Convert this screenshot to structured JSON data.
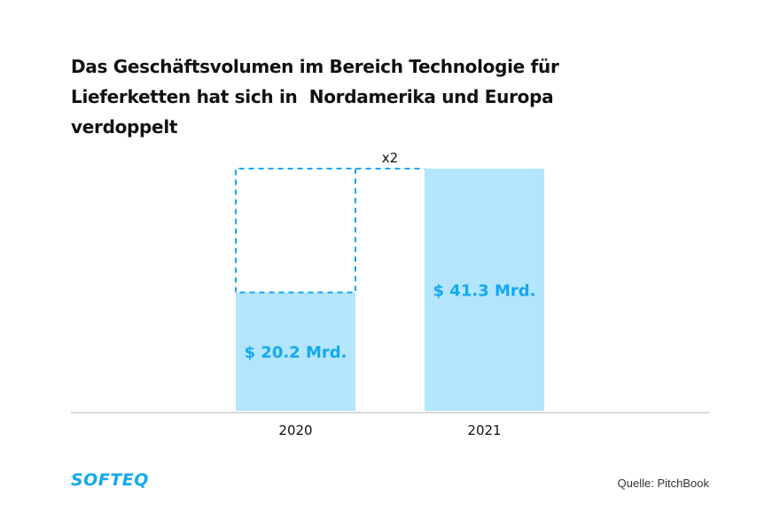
{
  "title_lines": [
    "Das Geschäftsvolumen im Bereich Technologie für",
    "Lieferketten hat sich in  Nordamerika und Europa",
    "verdoppelt"
  ],
  "chart_data": {
    "type": "bar",
    "title": "Das Geschäftsvolumen im Bereich Technologie für Lieferketten hat sich in  Nordamerika und Europa verdoppelt",
    "categories": [
      "2020",
      "2021"
    ],
    "values": [
      20.2,
      41.3
    ],
    "unit": "Mrd. $",
    "data_labels": [
      "$ 20.2 Mrd.",
      "$ 41.3 Mrd."
    ],
    "annotation": "x2",
    "xlabel": "",
    "ylabel": "",
    "ylim": [
      0,
      41.3
    ],
    "grid": false,
    "colors": {
      "bar": "#b3e5fc",
      "label": "#14a8f0",
      "dashed": "#14a8f0",
      "axis": "#d9d9d9"
    }
  },
  "footer": {
    "logo": "SOFTEQ",
    "source": "Quelle: PitchBook"
  }
}
